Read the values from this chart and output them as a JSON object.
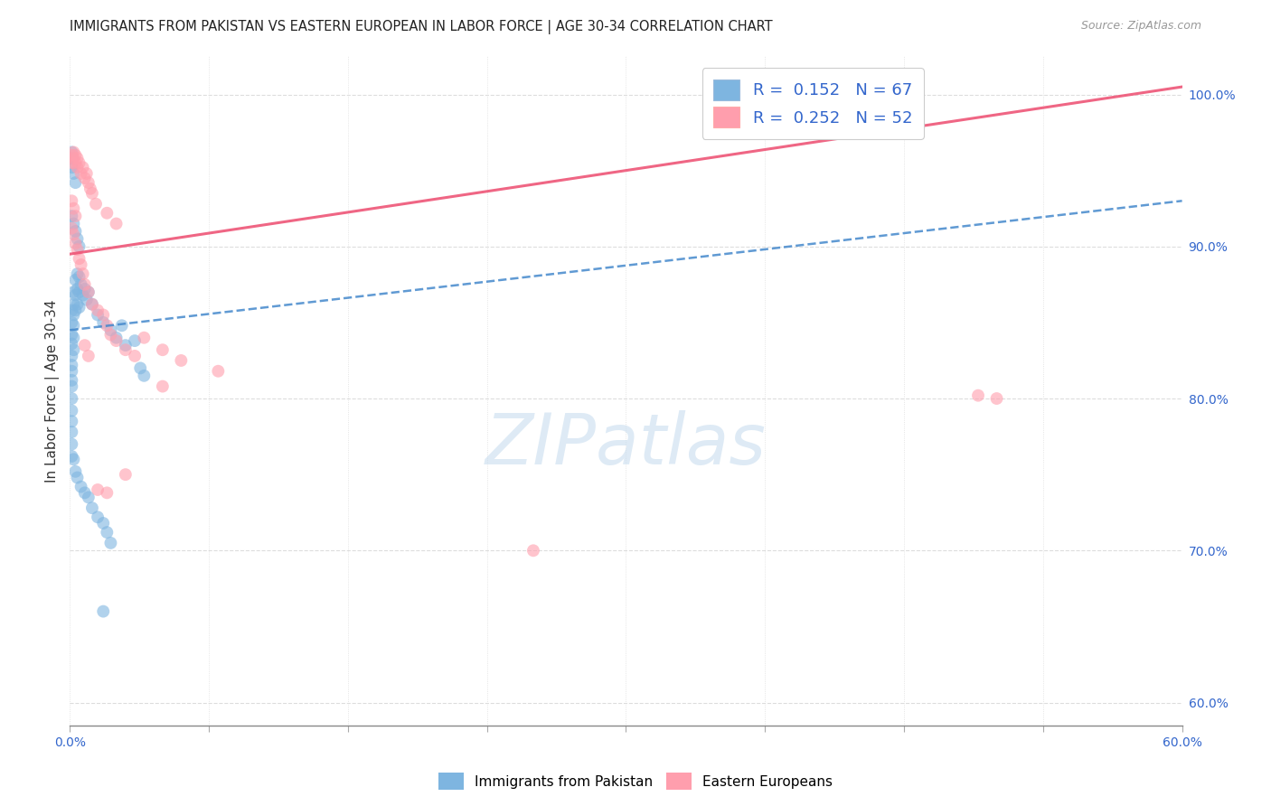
{
  "title": "IMMIGRANTS FROM PAKISTAN VS EASTERN EUROPEAN IN LABOR FORCE | AGE 30-34 CORRELATION CHART",
  "source": "Source: ZipAtlas.com",
  "ylabel": "In Labor Force | Age 30-34",
  "ylabel_right_ticks": [
    "60.0%",
    "70.0%",
    "80.0%",
    "90.0%",
    "100.0%"
  ],
  "ylabel_right_vals": [
    0.6,
    0.7,
    0.8,
    0.9,
    1.0
  ],
  "xlim": [
    0.0,
    0.6
  ],
  "ylim": [
    0.585,
    1.025
  ],
  "pakistan_color": "#7EB5E0",
  "eastern_color": "#FF9EAD",
  "pakistan_line_color": "#4488CC",
  "eastern_line_color": "#EE5577",
  "pakistan_R": "0.152",
  "pakistan_N": "67",
  "eastern_R": "0.252",
  "eastern_N": "52",
  "pak_trend_x0": 0.0,
  "pak_trend_y0": 0.845,
  "pak_trend_x1": 0.6,
  "pak_trend_y1": 0.93,
  "eas_trend_x0": 0.0,
  "eas_trend_y0": 0.895,
  "eas_trend_x1": 0.6,
  "eas_trend_y1": 1.005,
  "pakistan_points": [
    [
      0.001,
      0.858
    ],
    [
      0.001,
      0.85
    ],
    [
      0.001,
      0.842
    ],
    [
      0.001,
      0.836
    ],
    [
      0.001,
      0.828
    ],
    [
      0.001,
      0.822
    ],
    [
      0.001,
      0.818
    ],
    [
      0.001,
      0.812
    ],
    [
      0.001,
      0.808
    ],
    [
      0.001,
      0.8
    ],
    [
      0.001,
      0.792
    ],
    [
      0.001,
      0.785
    ],
    [
      0.001,
      0.778
    ],
    [
      0.001,
      0.77
    ],
    [
      0.001,
      0.762
    ],
    [
      0.002,
      0.87
    ],
    [
      0.002,
      0.862
    ],
    [
      0.002,
      0.855
    ],
    [
      0.002,
      0.848
    ],
    [
      0.002,
      0.84
    ],
    [
      0.002,
      0.832
    ],
    [
      0.003,
      0.878
    ],
    [
      0.003,
      0.868
    ],
    [
      0.003,
      0.858
    ],
    [
      0.004,
      0.882
    ],
    [
      0.004,
      0.872
    ],
    [
      0.004,
      0.862
    ],
    [
      0.005,
      0.88
    ],
    [
      0.005,
      0.87
    ],
    [
      0.005,
      0.86
    ],
    [
      0.006,
      0.875
    ],
    [
      0.007,
      0.868
    ],
    [
      0.008,
      0.872
    ],
    [
      0.009,
      0.865
    ],
    [
      0.01,
      0.87
    ],
    [
      0.012,
      0.862
    ],
    [
      0.015,
      0.855
    ],
    [
      0.018,
      0.85
    ],
    [
      0.022,
      0.845
    ],
    [
      0.028,
      0.848
    ],
    [
      0.001,
      0.962
    ],
    [
      0.001,
      0.958
    ],
    [
      0.001,
      0.952
    ],
    [
      0.002,
      0.948
    ],
    [
      0.003,
      0.942
    ],
    [
      0.001,
      0.92
    ],
    [
      0.002,
      0.915
    ],
    [
      0.003,
      0.91
    ],
    [
      0.004,
      0.905
    ],
    [
      0.005,
      0.9
    ],
    [
      0.002,
      0.76
    ],
    [
      0.003,
      0.752
    ],
    [
      0.004,
      0.748
    ],
    [
      0.006,
      0.742
    ],
    [
      0.008,
      0.738
    ],
    [
      0.01,
      0.735
    ],
    [
      0.012,
      0.728
    ],
    [
      0.015,
      0.722
    ],
    [
      0.018,
      0.718
    ],
    [
      0.02,
      0.712
    ],
    [
      0.022,
      0.705
    ],
    [
      0.038,
      0.82
    ],
    [
      0.04,
      0.815
    ],
    [
      0.018,
      0.66
    ],
    [
      0.035,
      0.838
    ],
    [
      0.025,
      0.84
    ],
    [
      0.03,
      0.835
    ]
  ],
  "eastern_points": [
    [
      0.001,
      0.96
    ],
    [
      0.001,
      0.955
    ],
    [
      0.002,
      0.962
    ],
    [
      0.002,
      0.958
    ],
    [
      0.003,
      0.96
    ],
    [
      0.003,
      0.955
    ],
    [
      0.004,
      0.958
    ],
    [
      0.004,
      0.952
    ],
    [
      0.005,
      0.955
    ],
    [
      0.006,
      0.948
    ],
    [
      0.007,
      0.952
    ],
    [
      0.008,
      0.945
    ],
    [
      0.009,
      0.948
    ],
    [
      0.01,
      0.942
    ],
    [
      0.011,
      0.938
    ],
    [
      0.012,
      0.935
    ],
    [
      0.014,
      0.928
    ],
    [
      0.02,
      0.922
    ],
    [
      0.025,
      0.915
    ],
    [
      0.001,
      0.93
    ],
    [
      0.002,
      0.925
    ],
    [
      0.003,
      0.92
    ],
    [
      0.001,
      0.912
    ],
    [
      0.002,
      0.908
    ],
    [
      0.003,
      0.902
    ],
    [
      0.004,
      0.898
    ],
    [
      0.005,
      0.892
    ],
    [
      0.006,
      0.888
    ],
    [
      0.007,
      0.882
    ],
    [
      0.008,
      0.875
    ],
    [
      0.01,
      0.87
    ],
    [
      0.012,
      0.862
    ],
    [
      0.015,
      0.858
    ],
    [
      0.018,
      0.855
    ],
    [
      0.02,
      0.848
    ],
    [
      0.022,
      0.842
    ],
    [
      0.025,
      0.838
    ],
    [
      0.03,
      0.832
    ],
    [
      0.035,
      0.828
    ],
    [
      0.008,
      0.835
    ],
    [
      0.01,
      0.828
    ],
    [
      0.04,
      0.84
    ],
    [
      0.05,
      0.832
    ],
    [
      0.06,
      0.825
    ],
    [
      0.08,
      0.818
    ],
    [
      0.49,
      0.802
    ],
    [
      0.5,
      0.8
    ],
    [
      0.015,
      0.74
    ],
    [
      0.02,
      0.738
    ],
    [
      0.25,
      0.7
    ],
    [
      0.03,
      0.75
    ],
    [
      0.05,
      0.808
    ]
  ],
  "watermark_text": "ZIPatlas",
  "grid_color": "#dddddd"
}
